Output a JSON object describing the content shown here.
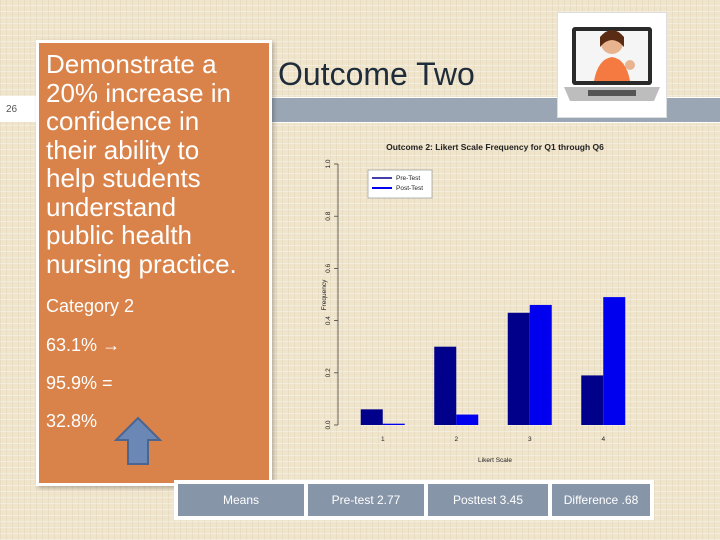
{
  "slide": {
    "number": "26",
    "title": "Outcome Two",
    "objective_lines": [
      "Demonstrate a",
      "20% increase in",
      "confidence in",
      "their ability to",
      "help students",
      "understand",
      "public health",
      "nursing practice."
    ],
    "category_label": "Category 2",
    "pre_value": "63.1%",
    "arrow_glyph": "→",
    "post_value": "95.9% =",
    "difference_value": "32.8%",
    "up_arrow_icon": "up-arrow-icon",
    "photo_icon": "laptop-woman-thumbs-up-icon"
  },
  "means_table": {
    "label": "Means",
    "pre": "Pre-test 2.77",
    "post": "Posttest  3.45",
    "difference": "Difference .68"
  },
  "colors": {
    "orange_box": "#d9834a",
    "title_band": "#9aa6b4",
    "cell_fill": "#8795a8",
    "pre_series": "#00008b",
    "post_series": "#0000ee"
  },
  "chart_data": {
    "type": "bar",
    "title": "Outcome 2: Likert Scale Frequency for Q1 through Q6",
    "xlabel": "Likert Scale",
    "ylabel": "Frequency",
    "categories": [
      "1",
      "2",
      "3",
      "4"
    ],
    "ylim": [
      0,
      1.0
    ],
    "yticks": [
      "0.0",
      "0.2",
      "0.4",
      "0.6",
      "0.8",
      "1.0"
    ],
    "legend_position": "top-left",
    "series": [
      {
        "name": "Pre-Test",
        "values": [
          0.06,
          0.3,
          0.43,
          0.19
        ]
      },
      {
        "name": "Post-Test",
        "values": [
          0.005,
          0.04,
          0.46,
          0.49
        ]
      }
    ]
  }
}
